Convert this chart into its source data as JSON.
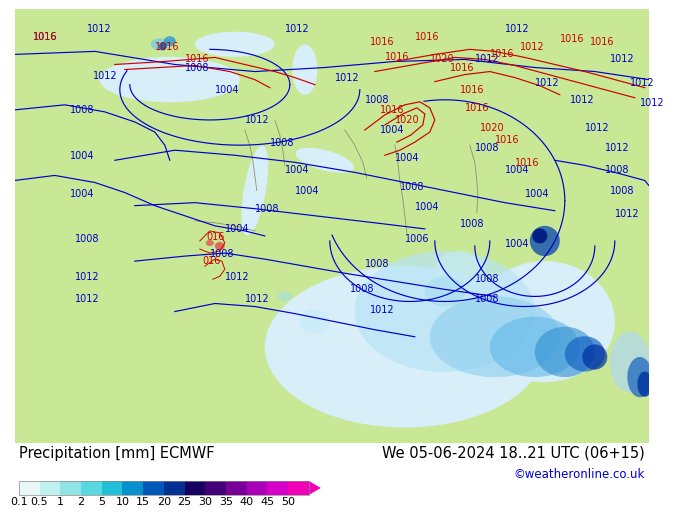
{
  "title_left": "Precipitation [mm] ECMWF",
  "title_right": "We 05-06-2024 18..21 UTC (06+15)",
  "credit": "©weatheronline.co.uk",
  "colorbar_labels": [
    "0.1",
    "0.5",
    "1",
    "2",
    "5",
    "10",
    "15",
    "20",
    "25",
    "30",
    "35",
    "40",
    "45",
    "50"
  ],
  "colorbar_colors": [
    "#e8f8f8",
    "#c0f0f0",
    "#90e4e4",
    "#58d8e0",
    "#20c0d8",
    "#0890cc",
    "#0058b8",
    "#003090",
    "#180060",
    "#440078",
    "#780098",
    "#aa00b8",
    "#d800c8",
    "#f000b8"
  ],
  "bg_color": "#ffffff",
  "land_color": "#c8e8a0",
  "sea_color": "#ddf0f8",
  "border_color": "#a0a080",
  "title_fontsize": 10.5,
  "credit_fontsize": 8.5,
  "label_fontsize": 8
}
